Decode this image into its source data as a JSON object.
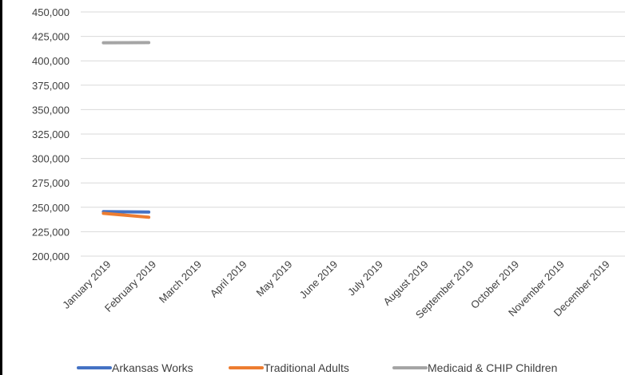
{
  "chart_data": {
    "type": "line",
    "title": "",
    "xlabel": "",
    "ylabel": "",
    "categories": [
      "January 2019",
      "February 2019",
      "March 2019",
      "April 2019",
      "May 2019",
      "June 2019",
      "July 2019",
      "August 2019",
      "September 2019",
      "October 2019",
      "November 2019",
      "December 2019"
    ],
    "ylim": [
      200000,
      450000
    ],
    "yticks": [
      200000,
      225000,
      250000,
      275000,
      300000,
      325000,
      350000,
      375000,
      400000,
      425000,
      450000
    ],
    "ytick_labels": [
      "200,000",
      "225,000",
      "250,000",
      "275,000",
      "300,000",
      "325,000",
      "350,000",
      "375,000",
      "400,000",
      "425,000",
      "450,000"
    ],
    "grid": true,
    "legend_position": "bottom",
    "series": [
      {
        "name": "Arkansas Works",
        "color": "#4472C4",
        "values": [
          245600,
          245100,
          null,
          null,
          null,
          null,
          null,
          null,
          null,
          null,
          null,
          null
        ]
      },
      {
        "name": "Traditional Adults",
        "color": "#ED7D31",
        "values": [
          243800,
          239800,
          null,
          null,
          null,
          null,
          null,
          null,
          null,
          null,
          null,
          null
        ]
      },
      {
        "name": "Medicaid & CHIP Children",
        "color": "#A5A5A5",
        "values": [
          418500,
          418600,
          null,
          null,
          null,
          null,
          null,
          null,
          null,
          null,
          null,
          null
        ]
      }
    ]
  }
}
